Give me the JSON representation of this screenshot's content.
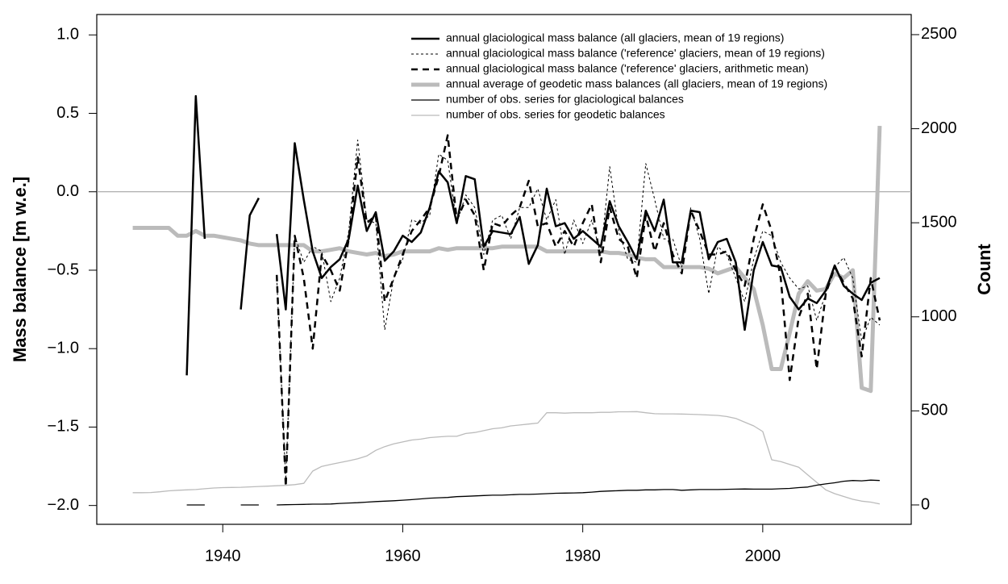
{
  "chart_data": {
    "type": "line",
    "y_label": "Mass balance [m w.e.]",
    "y2_label": "Count",
    "x": [
      1930,
      1931,
      1932,
      1933,
      1934,
      1935,
      1936,
      1937,
      1938,
      1939,
      1940,
      1941,
      1942,
      1943,
      1944,
      1945,
      1946,
      1947,
      1948,
      1949,
      1950,
      1951,
      1952,
      1953,
      1954,
      1955,
      1956,
      1957,
      1958,
      1959,
      1960,
      1961,
      1962,
      1963,
      1964,
      1965,
      1966,
      1967,
      1968,
      1969,
      1970,
      1971,
      1972,
      1973,
      1974,
      1975,
      1976,
      1977,
      1978,
      1979,
      1980,
      1981,
      1982,
      1983,
      1984,
      1985,
      1986,
      1987,
      1988,
      1989,
      1990,
      1991,
      1992,
      1993,
      1994,
      1995,
      1996,
      1997,
      1998,
      1999,
      2000,
      2001,
      2002,
      2003,
      2004,
      2005,
      2006,
      2007,
      2008,
      2009,
      2010,
      2011,
      2012,
      2013
    ],
    "xlim": [
      1926,
      2016.5
    ],
    "xticks": [
      1940,
      1960,
      1980,
      2000
    ],
    "ylim": [
      -2.12,
      1.13
    ],
    "yticks": [
      {
        "value": -2.0,
        "label": "−2.0"
      },
      {
        "value": -1.5,
        "label": "−1.5"
      },
      {
        "value": -1.0,
        "label": "−1.0"
      },
      {
        "value": -0.5,
        "label": "−0.5"
      },
      {
        "value": 0,
        "label": "0.0"
      },
      {
        "value": 0.5,
        "label": "0.5"
      },
      {
        "value": 1.0,
        "label": "1.0"
      }
    ],
    "y2lim": [
      -103,
      2607
    ],
    "y2ticks": [
      0,
      500,
      1000,
      1500,
      2000,
      2500
    ],
    "reference_line": 0,
    "series": [
      {
        "name": "annual glaciological mass balance (all glaciers, mean of 19 regions)",
        "color": "#000000",
        "width": 2.5,
        "dash": "none",
        "values": [
          null,
          null,
          null,
          null,
          null,
          null,
          -1.17,
          0.61,
          -0.3,
          null,
          null,
          null,
          -0.75,
          -0.15,
          -0.04,
          null,
          -0.27,
          -0.75,
          0.31,
          -0.05,
          -0.38,
          -0.55,
          -0.48,
          -0.43,
          -0.3,
          0.04,
          -0.25,
          -0.13,
          -0.44,
          -0.38,
          -0.28,
          -0.32,
          -0.26,
          -0.1,
          0.13,
          0.06,
          -0.2,
          0.1,
          0.08,
          -0.35,
          -0.25,
          -0.26,
          -0.27,
          -0.16,
          -0.46,
          -0.34,
          0.02,
          -0.22,
          -0.2,
          -0.3,
          -0.25,
          -0.3,
          -0.35,
          -0.06,
          -0.22,
          -0.32,
          -0.43,
          -0.12,
          -0.25,
          -0.05,
          -0.45,
          -0.45,
          -0.12,
          -0.13,
          -0.43,
          -0.32,
          -0.3,
          -0.45,
          -0.88,
          -0.5,
          -0.32,
          -0.47,
          -0.48,
          -0.67,
          -0.75,
          -0.68,
          -0.71,
          -0.63,
          -0.47,
          -0.6,
          -0.65,
          -0.69,
          -0.58,
          -0.55
        ]
      },
      {
        "name": "annual glaciological mass balance ('reference' glaciers, mean of 19 regions)",
        "color": "#000000",
        "width": 1,
        "dash": "3 3",
        "values": [
          null,
          null,
          null,
          null,
          null,
          null,
          null,
          null,
          null,
          null,
          null,
          null,
          null,
          null,
          null,
          null,
          -0.55,
          -1.85,
          -0.28,
          -0.45,
          -0.35,
          -0.38,
          -0.7,
          -0.55,
          -0.25,
          0.33,
          -0.18,
          -0.2,
          -0.88,
          -0.55,
          -0.43,
          -0.18,
          -0.2,
          -0.15,
          0.24,
          0.2,
          -0.2,
          -0.02,
          -0.1,
          -0.4,
          -0.18,
          -0.15,
          -0.3,
          -0.1,
          -0.1,
          0.02,
          -0.18,
          -0.05,
          -0.4,
          -0.18,
          -0.33,
          -0.18,
          -0.4,
          0.16,
          -0.25,
          -0.43,
          -0.45,
          0.18,
          -0.05,
          -0.3,
          -0.3,
          -0.48,
          -0.1,
          -0.3,
          -0.65,
          -0.35,
          -0.4,
          -0.55,
          -0.7,
          -0.43,
          -0.25,
          -0.28,
          -0.45,
          -0.55,
          -0.62,
          -0.6,
          -0.82,
          -0.65,
          -0.48,
          -0.42,
          -0.55,
          -0.95,
          -0.8,
          -0.85
        ]
      },
      {
        "name": "annual glaciological mass balance ('reference' glaciers, arithmetic mean)",
        "color": "#000000",
        "width": 2.5,
        "dash": "8 6",
        "values": [
          null,
          null,
          null,
          null,
          null,
          null,
          null,
          null,
          null,
          null,
          null,
          null,
          null,
          null,
          null,
          null,
          -0.53,
          -1.88,
          -0.28,
          -0.55,
          -1.0,
          -0.4,
          -0.5,
          -0.63,
          -0.3,
          0.22,
          -0.2,
          -0.15,
          -0.7,
          -0.55,
          -0.4,
          -0.25,
          -0.18,
          -0.1,
          0.1,
          0.36,
          -0.18,
          -0.05,
          -0.15,
          -0.5,
          -0.2,
          -0.22,
          -0.15,
          -0.1,
          0.07,
          -0.22,
          -0.2,
          -0.35,
          -0.25,
          -0.35,
          -0.2,
          -0.08,
          -0.45,
          -0.1,
          -0.3,
          -0.35,
          -0.55,
          -0.15,
          -0.38,
          -0.2,
          -0.4,
          -0.52,
          -0.12,
          -0.25,
          -0.4,
          -0.4,
          -0.38,
          -0.5,
          -0.6,
          -0.3,
          -0.08,
          -0.25,
          -0.55,
          -1.2,
          -0.8,
          -0.65,
          -1.13,
          -0.65,
          -0.48,
          -0.58,
          -0.68,
          -1.05,
          -0.55,
          -0.82
        ]
      },
      {
        "name": "annual average of geodetic mass balances (all glaciers, mean of 19 regions)",
        "color": "#bbbbbb",
        "width": 5,
        "dash": "none",
        "values": [
          -0.23,
          -0.23,
          -0.23,
          -0.23,
          -0.23,
          -0.28,
          -0.28,
          -0.25,
          -0.28,
          -0.28,
          -0.29,
          -0.3,
          -0.31,
          -0.33,
          -0.34,
          -0.34,
          -0.34,
          -0.34,
          -0.34,
          -0.34,
          -0.38,
          -0.38,
          -0.37,
          -0.36,
          -0.38,
          -0.39,
          -0.4,
          -0.39,
          -0.41,
          -0.4,
          -0.38,
          -0.38,
          -0.38,
          -0.38,
          -0.36,
          -0.37,
          -0.36,
          -0.36,
          -0.36,
          -0.36,
          -0.36,
          -0.35,
          -0.35,
          -0.35,
          -0.35,
          -0.35,
          -0.38,
          -0.38,
          -0.38,
          -0.38,
          -0.38,
          -0.38,
          -0.38,
          -0.39,
          -0.39,
          -0.4,
          -0.42,
          -0.43,
          -0.43,
          -0.48,
          -0.48,
          -0.48,
          -0.48,
          -0.48,
          -0.49,
          -0.52,
          -0.5,
          -0.48,
          -0.55,
          -0.62,
          -0.85,
          -1.13,
          -1.13,
          -0.9,
          -0.65,
          -0.57,
          -0.63,
          -0.62,
          -0.52,
          -0.55,
          -0.5,
          -1.25,
          -1.27,
          0.42
        ]
      },
      {
        "name": "number of obs. series for glaciological balances",
        "color": "#000000",
        "width": 1.3,
        "dash": "none",
        "axis": "y2",
        "values": [
          null,
          null,
          null,
          null,
          null,
          null,
          0,
          0,
          0,
          null,
          null,
          null,
          0,
          0,
          0,
          null,
          0,
          1,
          2,
          3,
          4,
          4,
          5,
          8,
          10,
          12,
          15,
          18,
          20,
          22,
          25,
          28,
          32,
          36,
          38,
          40,
          44,
          46,
          48,
          50,
          52,
          52,
          54,
          56,
          56,
          58,
          60,
          62,
          63,
          64,
          65,
          68,
          72,
          74,
          76,
          78,
          78,
          80,
          80,
          82,
          82,
          78,
          80,
          82,
          82,
          82,
          83,
          84,
          85,
          84,
          84,
          84,
          86,
          88,
          92,
          95,
          105,
          112,
          118,
          126,
          130,
          128,
          132,
          130
        ]
      },
      {
        "name": "number of obs. series for geodetic balances",
        "color": "#bbbbbb",
        "width": 1.3,
        "dash": "none",
        "axis": "y2",
        "values": [
          65,
          65,
          66,
          70,
          75,
          78,
          80,
          82,
          86,
          90,
          92,
          93,
          94,
          96,
          98,
          100,
          102,
          104,
          108,
          115,
          180,
          205,
          215,
          225,
          235,
          245,
          260,
          290,
          310,
          325,
          335,
          345,
          350,
          358,
          362,
          365,
          365,
          380,
          385,
          395,
          405,
          410,
          420,
          425,
          430,
          435,
          490,
          490,
          488,
          490,
          490,
          490,
          492,
          492,
          495,
          495,
          496,
          490,
          485,
          484,
          484,
          483,
          482,
          480,
          478,
          476,
          470,
          460,
          440,
          420,
          390,
          240,
          230,
          215,
          200,
          160,
          120,
          80,
          60,
          45,
          30,
          20,
          15,
          5
        ]
      }
    ]
  }
}
